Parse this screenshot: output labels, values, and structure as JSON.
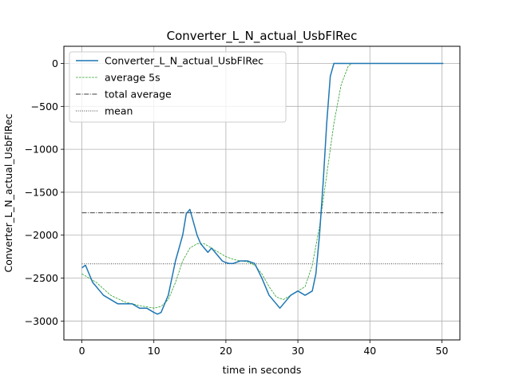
{
  "chart_data": {
    "type": "line",
    "title": "Converter_L_N_actual_UsbFlRec",
    "xlabel": "time in seconds",
    "ylabel": "Converter_L_N_actual_UsbFlRec",
    "xlim": [
      -2.5,
      52.5
    ],
    "ylim": [
      -3220,
      200
    ],
    "x_ticks": [
      0,
      10,
      20,
      30,
      40,
      50
    ],
    "y_ticks": [
      -3000,
      -2500,
      -2000,
      -1500,
      -1000,
      -500,
      0
    ],
    "x_tick_labels": [
      "0",
      "10",
      "20",
      "30",
      "40",
      "50"
    ],
    "y_tick_labels": [
      "−3000",
      "−2500",
      "−2000",
      "−1500",
      "−1000",
      "−500",
      "0"
    ],
    "grid": true,
    "legend_position": "top-left",
    "series": [
      {
        "name": "Converter_L_N_actual_UsbFlRec",
        "style": "solid",
        "color": "#1f77b4",
        "x": [
          0,
          0.5,
          1,
          1.5,
          2,
          2.5,
          3,
          4,
          5,
          6,
          7,
          8,
          9,
          10,
          10.5,
          11,
          11.5,
          12,
          12.5,
          13,
          13.5,
          14,
          14.5,
          15,
          15.5,
          16,
          16.5,
          17,
          17.5,
          18,
          18.5,
          19,
          19.5,
          20,
          20.5,
          21,
          22,
          23,
          24,
          25,
          25.5,
          26,
          26.5,
          27,
          27.5,
          28,
          29,
          30,
          31,
          32,
          32.5,
          33,
          33.5,
          34,
          34.5,
          35,
          35.5,
          36,
          40,
          45,
          50.2
        ],
        "y": [
          -2380,
          -2350,
          -2450,
          -2550,
          -2600,
          -2650,
          -2700,
          -2750,
          -2800,
          -2800,
          -2800,
          -2850,
          -2850,
          -2900,
          -2920,
          -2900,
          -2800,
          -2700,
          -2500,
          -2300,
          -2150,
          -2000,
          -1750,
          -1700,
          -1850,
          -2000,
          -2100,
          -2150,
          -2200,
          -2150,
          -2200,
          -2250,
          -2300,
          -2320,
          -2330,
          -2330,
          -2300,
          -2300,
          -2330,
          -2500,
          -2600,
          -2700,
          -2750,
          -2800,
          -2850,
          -2800,
          -2700,
          -2650,
          -2700,
          -2650,
          -2450,
          -2000,
          -1400,
          -700,
          -150,
          0,
          0,
          0,
          0,
          0,
          0
        ]
      },
      {
        "name": "average 5s",
        "style": "dashed",
        "color": "#2ca02c",
        "x": [
          0,
          2,
          4,
          6,
          8,
          10,
          11,
          12,
          13,
          14,
          15,
          16,
          17,
          18,
          19,
          20,
          21,
          22,
          23,
          24,
          25,
          26,
          27,
          28,
          29,
          30,
          31,
          32,
          33,
          34,
          35,
          36,
          37,
          37.5
        ],
        "y": [
          -2450,
          -2550,
          -2700,
          -2780,
          -2820,
          -2850,
          -2830,
          -2750,
          -2550,
          -2300,
          -2150,
          -2100,
          -2100,
          -2150,
          -2200,
          -2250,
          -2280,
          -2300,
          -2310,
          -2350,
          -2450,
          -2600,
          -2720,
          -2750,
          -2700,
          -2650,
          -2600,
          -2350,
          -1900,
          -1300,
          -700,
          -250,
          -30,
          0
        ]
      },
      {
        "name": "total average",
        "style": "dashdot",
        "color": "#000000",
        "x": [
          0,
          50.2
        ],
        "y": [
          -1740,
          -1740
        ]
      },
      {
        "name": "mean",
        "style": "dotted",
        "color": "#000000",
        "x": [
          0,
          50.2
        ],
        "y": [
          -2335,
          -2335
        ]
      }
    ]
  }
}
